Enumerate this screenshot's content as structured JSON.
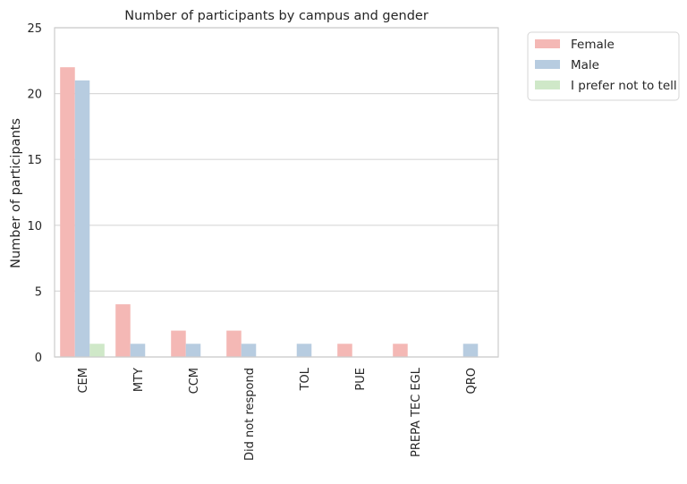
{
  "chart_data": {
    "type": "bar",
    "title": "Number of participants by campus and gender",
    "xlabel": "",
    "ylabel": "Number of participants",
    "ylim": [
      0,
      25
    ],
    "yticks": [
      "0",
      "5",
      "10",
      "15",
      "20",
      "25"
    ],
    "grid": "horizontal",
    "legend_position": "outside top-right",
    "categories": [
      "CEM",
      "MTY",
      "CCM",
      "Did not respond",
      "TOL",
      "PUE",
      "PREPA TEC EGL",
      "QRO"
    ],
    "series": [
      {
        "name": "Female",
        "color": "#f4b8b5",
        "values": [
          22,
          4,
          2,
          2,
          0,
          1,
          1,
          0
        ]
      },
      {
        "name": "Male",
        "color": "#b7cce0",
        "values": [
          21,
          1,
          1,
          1,
          1,
          0,
          0,
          1
        ]
      },
      {
        "name": "I prefer not to tell",
        "color": "#cfe8c8",
        "values": [
          1,
          0,
          0,
          0,
          0,
          0,
          0,
          0
        ]
      }
    ]
  }
}
